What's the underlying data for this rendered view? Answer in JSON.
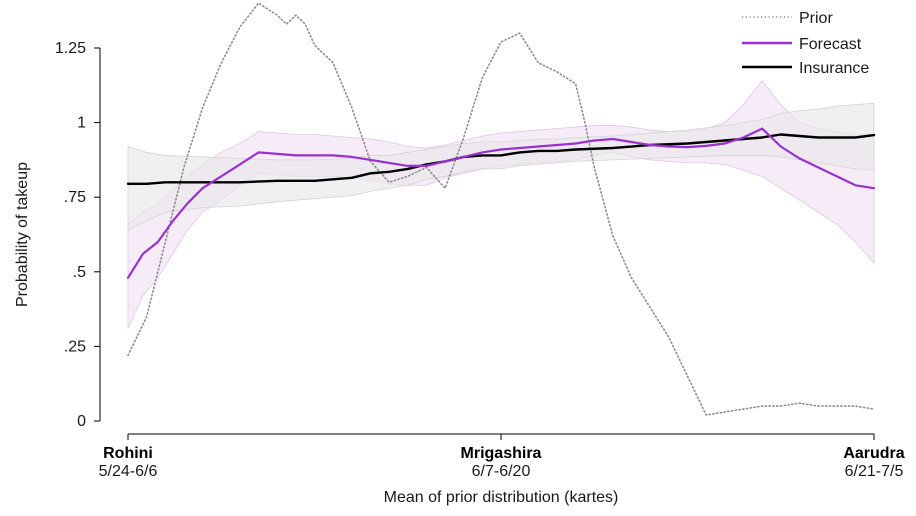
{
  "chart_data": {
    "type": "line",
    "title": "",
    "xlabel": "Mean of prior distribution (kartes)",
    "ylabel": "Probability of takeup",
    "xlim": [
      0,
      2
    ],
    "ylim": [
      0,
      1.25
    ],
    "y_ticks": [
      {
        "value": 0,
        "label": "0"
      },
      {
        "value": 0.25,
        "label": ".25"
      },
      {
        "value": 0.5,
        "label": ".5"
      },
      {
        "value": 0.75,
        "label": ".75"
      },
      {
        "value": 1,
        "label": "1"
      },
      {
        "value": 1.25,
        "label": "1.25"
      }
    ],
    "x_ticks": [
      {
        "value": 0,
        "name": "Rohini",
        "dates": "5/24-6/6"
      },
      {
        "value": 1,
        "name": "Mrigashira",
        "dates": "6/7-6/20"
      },
      {
        "value": 2,
        "name": "Aarudra",
        "dates": "6/21-7/5"
      }
    ],
    "grid": false,
    "legend_position": "top-right",
    "colors": {
      "prior": "#8c8c8c",
      "forecast": "#9b30d0",
      "forecast_band": "#f1e2f4",
      "insurance": "#000000",
      "insurance_band": "#e8e8e8"
    },
    "series": [
      {
        "name": "Prior",
        "style": "dotted",
        "x": [
          0,
          0.05,
          0.1,
          0.15,
          0.2,
          0.25,
          0.3,
          0.35,
          0.4,
          0.425,
          0.45,
          0.475,
          0.5,
          0.55,
          0.6,
          0.65,
          0.7,
          0.75,
          0.8,
          0.85,
          0.9,
          0.95,
          1,
          1.05,
          1.1,
          1.15,
          1.2,
          1.225,
          1.25,
          1.3,
          1.35,
          1.4,
          1.45,
          1.5,
          1.55,
          1.6,
          1.65,
          1.7,
          1.75,
          1.8,
          1.85,
          1.9,
          1.95,
          2
        ],
        "y": [
          0.22,
          0.35,
          0.6,
          0.85,
          1.05,
          1.2,
          1.32,
          1.4,
          1.36,
          1.33,
          1.36,
          1.33,
          1.26,
          1.2,
          1.05,
          0.87,
          0.8,
          0.82,
          0.85,
          0.78,
          0.95,
          1.15,
          1.27,
          1.3,
          1.2,
          1.17,
          1.13,
          1.0,
          0.85,
          0.62,
          0.48,
          0.38,
          0.28,
          0.15,
          0.02,
          0.03,
          0.04,
          0.05,
          0.05,
          0.06,
          0.05,
          0.05,
          0.05,
          0.04
        ]
      },
      {
        "name": "Forecast",
        "style": "solid",
        "x": [
          0,
          0.04,
          0.08,
          0.12,
          0.16,
          0.2,
          0.25,
          0.3,
          0.35,
          0.4,
          0.45,
          0.5,
          0.55,
          0.6,
          0.65,
          0.7,
          0.75,
          0.8,
          0.85,
          0.9,
          0.95,
          1,
          1.05,
          1.1,
          1.15,
          1.2,
          1.25,
          1.3,
          1.35,
          1.4,
          1.45,
          1.5,
          1.55,
          1.6,
          1.65,
          1.7,
          1.75,
          1.8,
          1.85,
          1.9,
          1.95,
          2
        ],
        "y": [
          0.48,
          0.56,
          0.6,
          0.67,
          0.73,
          0.78,
          0.82,
          0.86,
          0.9,
          0.895,
          0.89,
          0.89,
          0.89,
          0.885,
          0.875,
          0.865,
          0.855,
          0.855,
          0.87,
          0.885,
          0.9,
          0.91,
          0.915,
          0.92,
          0.925,
          0.93,
          0.94,
          0.945,
          0.935,
          0.925,
          0.92,
          0.918,
          0.922,
          0.93,
          0.95,
          0.98,
          0.92,
          0.88,
          0.85,
          0.82,
          0.79,
          0.78
        ],
        "upper": [
          0.66,
          0.7,
          0.73,
          0.78,
          0.82,
          0.86,
          0.9,
          0.93,
          0.97,
          0.965,
          0.96,
          0.96,
          0.955,
          0.95,
          0.945,
          0.935,
          0.92,
          0.915,
          0.925,
          0.94,
          0.955,
          0.965,
          0.97,
          0.975,
          0.98,
          0.985,
          0.99,
          0.99,
          0.985,
          0.975,
          0.97,
          0.97,
          0.98,
          1.0,
          1.06,
          1.14,
          1.06,
          1.0,
          0.98,
          0.97,
          0.96,
          0.96
        ],
        "lower": [
          0.31,
          0.42,
          0.48,
          0.56,
          0.64,
          0.7,
          0.74,
          0.79,
          0.83,
          0.825,
          0.82,
          0.82,
          0.82,
          0.815,
          0.805,
          0.795,
          0.79,
          0.79,
          0.815,
          0.83,
          0.845,
          0.855,
          0.86,
          0.865,
          0.87,
          0.875,
          0.89,
          0.9,
          0.885,
          0.875,
          0.87,
          0.865,
          0.865,
          0.86,
          0.84,
          0.82,
          0.78,
          0.74,
          0.7,
          0.66,
          0.6,
          0.53
        ]
      },
      {
        "name": "Insurance",
        "style": "solid",
        "x": [
          0,
          0.05,
          0.1,
          0.2,
          0.3,
          0.4,
          0.5,
          0.6,
          0.65,
          0.7,
          0.75,
          0.8,
          0.85,
          0.9,
          0.95,
          1,
          1.05,
          1.1,
          1.15,
          1.2,
          1.3,
          1.4,
          1.5,
          1.6,
          1.7,
          1.75,
          1.8,
          1.85,
          1.9,
          1.95,
          2
        ],
        "y": [
          0.795,
          0.795,
          0.8,
          0.8,
          0.8,
          0.805,
          0.805,
          0.815,
          0.83,
          0.835,
          0.845,
          0.86,
          0.87,
          0.885,
          0.89,
          0.89,
          0.9,
          0.905,
          0.905,
          0.91,
          0.915,
          0.925,
          0.93,
          0.94,
          0.95,
          0.96,
          0.955,
          0.95,
          0.95,
          0.95,
          0.958
        ],
        "upper": [
          0.92,
          0.9,
          0.89,
          0.885,
          0.88,
          0.875,
          0.875,
          0.88,
          0.89,
          0.89,
          0.9,
          0.91,
          0.92,
          0.93,
          0.935,
          0.935,
          0.94,
          0.945,
          0.945,
          0.95,
          0.955,
          0.965,
          0.975,
          0.99,
          1.01,
          1.03,
          1.04,
          1.045,
          1.055,
          1.06,
          1.065
        ],
        "lower": [
          0.64,
          0.67,
          0.7,
          0.715,
          0.72,
          0.735,
          0.745,
          0.755,
          0.77,
          0.78,
          0.79,
          0.81,
          0.82,
          0.835,
          0.845,
          0.845,
          0.855,
          0.86,
          0.865,
          0.87,
          0.875,
          0.88,
          0.885,
          0.89,
          0.89,
          0.885,
          0.875,
          0.865,
          0.855,
          0.845,
          0.84
        ]
      }
    ]
  }
}
